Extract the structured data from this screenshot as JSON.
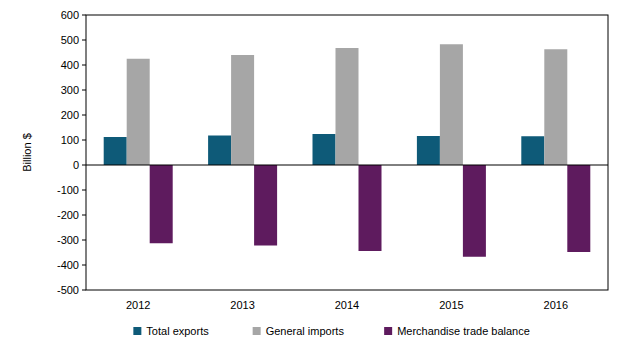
{
  "chart_data": {
    "type": "bar",
    "y_label": "Billion $",
    "categories": [
      "2012",
      "2013",
      "2014",
      "2015",
      "2016"
    ],
    "series": [
      {
        "name": "Total exports",
        "color": "#0e5a78",
        "values": [
          112,
          118,
          124,
          116,
          115
        ]
      },
      {
        "name": "General imports",
        "color": "#a6a6a6",
        "values": [
          425,
          440,
          468,
          483,
          463
        ]
      },
      {
        "name": "Merchandise trade balance",
        "color": "#5e1b5e",
        "values": [
          -313,
          -322,
          -344,
          -367,
          -348
        ]
      }
    ],
    "ylim": [
      -500,
      600
    ],
    "yticks": [
      -500,
      -400,
      -300,
      -200,
      -100,
      0,
      100,
      200,
      300,
      400,
      500,
      600
    ],
    "grid": false,
    "legend": "bottom"
  }
}
